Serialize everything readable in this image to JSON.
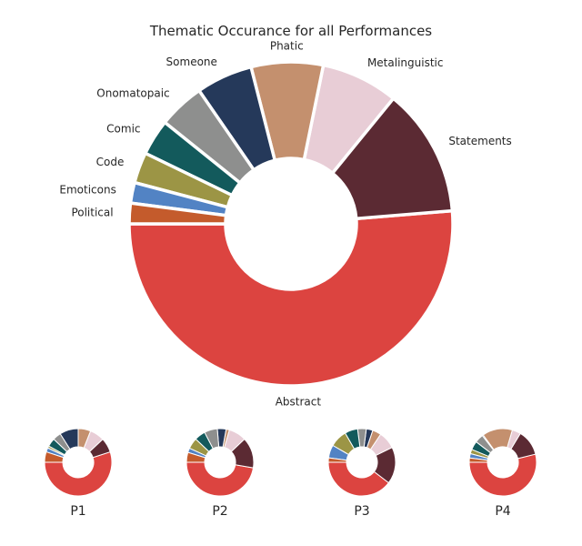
{
  "figure": {
    "title": "Thematic Occurance for all Performances"
  },
  "colors": {
    "Abstract": "#dc4440",
    "Statements": "#5b2a33",
    "Metalinguistic": "#e8cdd6",
    "Phatic": "#c4906e",
    "Someone": "#25395a",
    "Onomatopaic": "#8e8f8e",
    "Comic": "#135a5c",
    "Code": "#9c9545",
    "Emoticons": "#5283c4",
    "Political": "#c45b2c"
  },
  "chart_data": [
    {
      "type": "pie",
      "title": "Thematic Occurance for all Performances",
      "categories": [
        "Abstract",
        "Statements",
        "Metalinguistic",
        "Phatic",
        "Someone",
        "Onomatopaic",
        "Comic",
        "Code",
        "Emoticons",
        "Political"
      ],
      "values": [
        50.0,
        12.5,
        7.5,
        7.0,
        5.5,
        4.5,
        3.5,
        3.0,
        2.0,
        2.0
      ]
    },
    {
      "type": "pie",
      "title": "P1",
      "categories": [
        "Abstract",
        "Statements",
        "Metalinguistic",
        "Phatic",
        "Someone",
        "Onomatopaic",
        "Comic",
        "Code",
        "Emoticons",
        "Political"
      ],
      "values": [
        55.0,
        7.0,
        7.0,
        6.0,
        9.0,
        4.0,
        4.0,
        1.0,
        2.0,
        5.0
      ]
    },
    {
      "type": "pie",
      "title": "P2",
      "categories": [
        "Abstract",
        "Statements",
        "Metalinguistic",
        "Phatic",
        "Someone",
        "Onomatopaic",
        "Comic",
        "Code",
        "Emoticons",
        "Political"
      ],
      "values": [
        45.0,
        14.0,
        8.0,
        1.5,
        4.0,
        6.0,
        5.0,
        5.0,
        2.0,
        4.5
      ]
    },
    {
      "type": "pie",
      "title": "P3",
      "categories": [
        "Abstract",
        "Statements",
        "Metalinguistic",
        "Phatic",
        "Someone",
        "Onomatopaic",
        "Comic",
        "Code",
        "Emoticons",
        "Political"
      ],
      "values": [
        38.0,
        17.0,
        8.0,
        4.0,
        3.0,
        4.0,
        6.0,
        8.0,
        6.0,
        2.0
      ]
    },
    {
      "type": "pie",
      "title": "P4",
      "categories": [
        "Abstract",
        "Statements",
        "Metalinguistic",
        "Phatic",
        "Someone",
        "Onomatopaic",
        "Comic",
        "Code",
        "Emoticons",
        "Political"
      ],
      "values": [
        52.0,
        12.0,
        4.0,
        14.0,
        0.5,
        4.0,
        4.0,
        2.0,
        2.0,
        2.0
      ]
    }
  ]
}
